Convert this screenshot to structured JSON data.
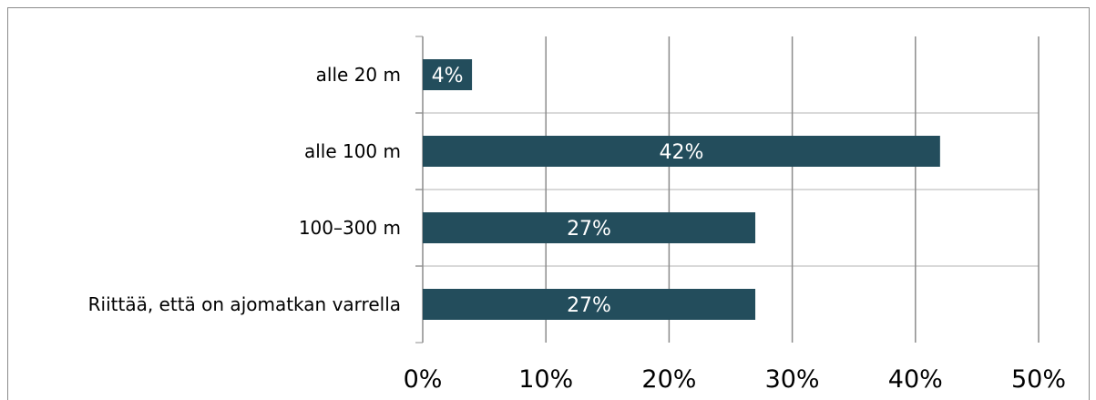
{
  "chart_data": {
    "type": "bar",
    "orientation": "horizontal",
    "categories": [
      "alle 20 m",
      "alle 100 m",
      "100–300 m",
      "Riittää, että on ajomatkan varrella"
    ],
    "values": [
      4,
      42,
      27,
      27
    ],
    "value_labels": [
      "4%",
      "42%",
      "27%",
      "27%"
    ],
    "xlim": [
      0,
      50
    ],
    "x_ticks": [
      0,
      10,
      20,
      30,
      40,
      50
    ],
    "x_tick_labels": [
      "0%",
      "10%",
      "20%",
      "30%",
      "40%",
      "50%"
    ],
    "grid": true,
    "legend": "none",
    "colors": {
      "bar": "#234d5c",
      "bar_label": "#ffffff",
      "gridline": "#8c8c8c",
      "category_separator": "#d9d9d9",
      "axis_text": "#000000"
    }
  }
}
